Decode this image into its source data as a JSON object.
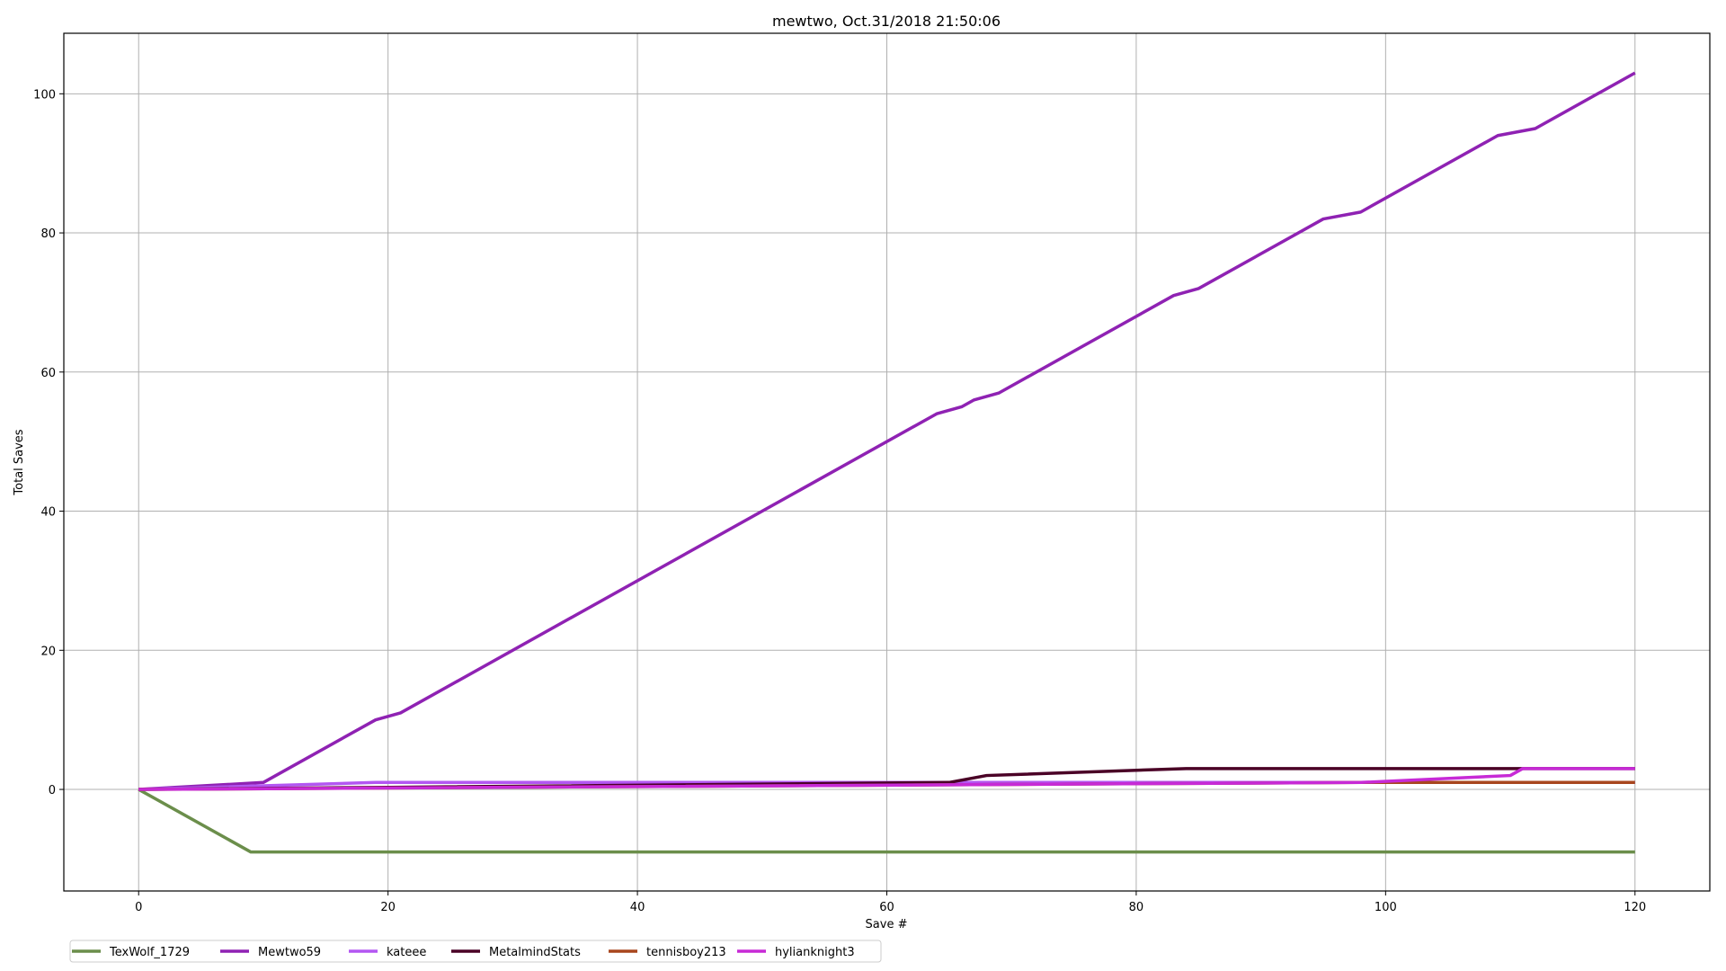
{
  "chart_data": {
    "type": "line",
    "title": "mewtwo, Oct.31/2018 21:50:06",
    "xlabel": "Save #",
    "ylabel": "Total Saves",
    "xlim": [
      -6,
      126
    ],
    "ylim": [
      -14.6,
      108.7
    ],
    "xticks": [
      0,
      20,
      40,
      60,
      80,
      100,
      120
    ],
    "yticks": [
      0,
      20,
      40,
      60,
      80,
      100
    ],
    "grid": true,
    "legend_placement": "bottom-left outside",
    "series": [
      {
        "name": "TexWolf_1729",
        "color": "#6b8e4b",
        "points": [
          [
            0,
            0
          ],
          [
            9,
            -9
          ],
          [
            120,
            -9
          ]
        ]
      },
      {
        "name": "Mewtwo59",
        "color": "#8f22b3",
        "points": [
          [
            0,
            0
          ],
          [
            10,
            1
          ],
          [
            19,
            10
          ],
          [
            21,
            11
          ],
          [
            64,
            54
          ],
          [
            66,
            55
          ],
          [
            67,
            56
          ],
          [
            69,
            57
          ],
          [
            83,
            71
          ],
          [
            85,
            72
          ],
          [
            95,
            82
          ],
          [
            98,
            83
          ],
          [
            109,
            94
          ],
          [
            112,
            95
          ],
          [
            120,
            103
          ]
        ]
      },
      {
        "name": "kateee",
        "color": "#b356f2",
        "points": [
          [
            0,
            0
          ],
          [
            19,
            1
          ],
          [
            120,
            1
          ]
        ]
      },
      {
        "name": "MetalmindStats",
        "color": "#4a0026",
        "points": [
          [
            0,
            0
          ],
          [
            20,
            0.3
          ],
          [
            65,
            1
          ],
          [
            68,
            2
          ],
          [
            84,
            3
          ],
          [
            120,
            3
          ]
        ]
      },
      {
        "name": "tennisboy213",
        "color": "#a8461e",
        "points": [
          [
            0,
            0
          ],
          [
            98,
            1
          ],
          [
            120,
            1
          ]
        ]
      },
      {
        "name": "hylianknight3",
        "color": "#c72ad6",
        "points": [
          [
            0,
            0
          ],
          [
            98,
            1
          ],
          [
            110,
            2
          ],
          [
            111,
            3
          ],
          [
            120,
            3
          ]
        ]
      }
    ]
  }
}
